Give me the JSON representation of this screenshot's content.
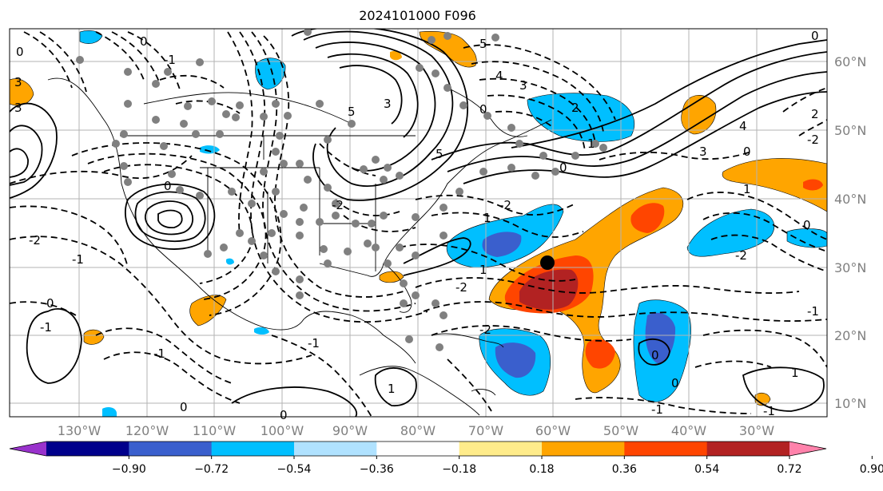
{
  "title": "2024101000 F096",
  "lat_labels": [
    "60°N",
    "50°N",
    "40°N",
    "30°N",
    "20°N",
    "10°N"
  ],
  "lon_labels": [
    "130°W",
    "120°W",
    "110°W",
    "100°W",
    "90°W",
    "80°W",
    "70°W",
    "60°W",
    "50°W",
    "40°W",
    "30°W"
  ],
  "colorbar": {
    "ticks": [
      "−0.90",
      "−0.72",
      "−0.54",
      "−0.36",
      "−0.18",
      "0.18",
      "0.36",
      "0.54",
      "0.72",
      "0.90"
    ],
    "colors": [
      "#9932cc",
      "#00008b",
      "#3a5fcd",
      "#00bfff",
      "#b0e2ff",
      "#ffffff",
      "#ffec8b",
      "#ffa500",
      "#ff4500",
      "#b22222",
      "#ff82ab"
    ]
  },
  "contour_labels": [
    "-1",
    "-2",
    "0",
    "1",
    "2",
    "3",
    "4",
    "5"
  ],
  "colors": {
    "negative_fill": "#00bfff",
    "negative_strong": "#3a5fcd",
    "positive_fill": "#ffa500",
    "positive_mid": "#ff4500",
    "positive_strong": "#b22222",
    "station": "#808080"
  }
}
